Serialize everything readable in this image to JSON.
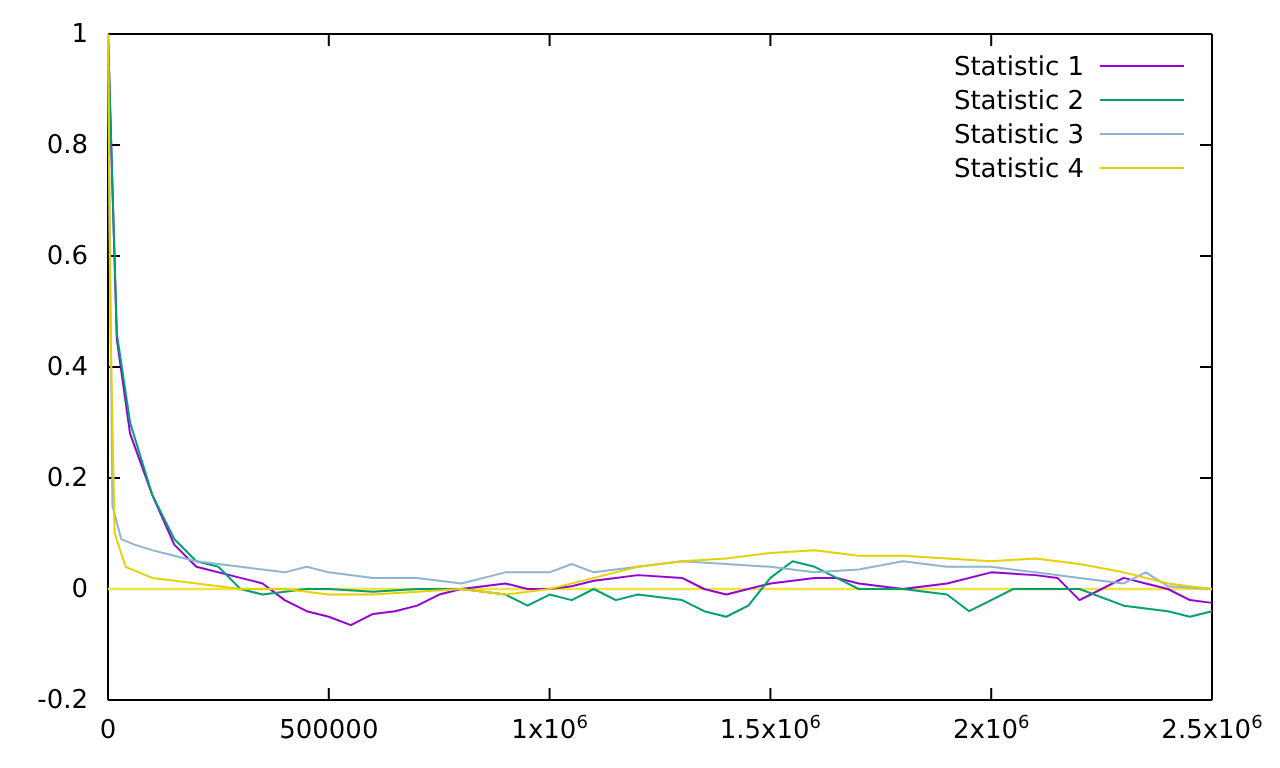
{
  "chart_data": {
    "type": "line",
    "xlim": [
      0,
      2500000
    ],
    "ylim": [
      -0.2,
      1
    ],
    "xticks": [
      0,
      500000,
      {
        "value": 1000000,
        "label": "1x10$^{6}$"
      },
      {
        "value": 1500000,
        "label": "1.5x10$^{6}$"
      },
      {
        "value": 2000000,
        "label": "2x10$^{6}$"
      },
      {
        "value": 2500000,
        "label": "2.5x10$^{6}$"
      }
    ],
    "yticks": [
      -0.2,
      0,
      0.2,
      0.4,
      0.6,
      0.8,
      1
    ],
    "grid": false,
    "legend": "top right",
    "line_style": "solid",
    "marker": "none",
    "ref_lines": [
      {
        "axis": "y",
        "value": 0,
        "color": "#f0e442"
      }
    ],
    "series": [
      {
        "name": "Statistic 1",
        "color": "#9400d3",
        "x": [
          0,
          20000,
          50000,
          100000,
          150000,
          200000,
          300000,
          350000,
          400000,
          450000,
          500000,
          550000,
          600000,
          650000,
          700000,
          750000,
          800000,
          850000,
          900000,
          950000,
          1000000,
          1050000,
          1100000,
          1150000,
          1200000,
          1300000,
          1350000,
          1400000,
          1450000,
          1500000,
          1600000,
          1650000,
          1700000,
          1750000,
          1800000,
          1900000,
          2000000,
          2100000,
          2150000,
          2200000,
          2250000,
          2300000,
          2350000,
          2400000,
          2450000,
          2500000
        ],
        "values": [
          1,
          0.45,
          0.28,
          0.17,
          0.08,
          0.04,
          0.02,
          0.01,
          -0.02,
          -0.04,
          -0.05,
          -0.065,
          -0.045,
          -0.04,
          -0.03,
          -0.01,
          0,
          0.005,
          0.01,
          0,
          0,
          0.005,
          0.015,
          0.02,
          0.025,
          0.02,
          0,
          -0.01,
          0,
          0.01,
          0.02,
          0.02,
          0.01,
          0.005,
          0,
          0.01,
          0.03,
          0.025,
          0.02,
          -0.02,
          0,
          0.02,
          0.01,
          0,
          -0.02,
          -0.025
        ]
      },
      {
        "name": "Statistic 2",
        "color": "#009e73",
        "x": [
          0,
          20000,
          50000,
          100000,
          150000,
          200000,
          250000,
          300000,
          350000,
          400000,
          450000,
          500000,
          600000,
          700000,
          800000,
          900000,
          950000,
          1000000,
          1050000,
          1100000,
          1150000,
          1200000,
          1300000,
          1350000,
          1400000,
          1450000,
          1500000,
          1550000,
          1600000,
          1650000,
          1700000,
          1800000,
          1900000,
          1950000,
          2000000,
          2050000,
          2100000,
          2200000,
          2300000,
          2400000,
          2450000,
          2500000
        ],
        "values": [
          1,
          0.46,
          0.3,
          0.17,
          0.09,
          0.05,
          0.04,
          0,
          -0.01,
          -0.005,
          0,
          0,
          -0.005,
          0,
          0,
          -0.01,
          -0.03,
          -0.01,
          -0.02,
          0,
          -0.02,
          -0.01,
          -0.02,
          -0.04,
          -0.05,
          -0.03,
          0.02,
          0.05,
          0.04,
          0.02,
          0,
          0,
          -0.01,
          -0.04,
          -0.02,
          0,
          0,
          0,
          -0.03,
          -0.04,
          -0.05,
          -0.04
        ]
      },
      {
        "name": "Statistic 3",
        "color": "#8fb4d0",
        "x": [
          0,
          10000,
          30000,
          60000,
          100000,
          150000,
          200000,
          300000,
          400000,
          450000,
          500000,
          600000,
          700000,
          800000,
          900000,
          1000000,
          1050000,
          1100000,
          1200000,
          1300000,
          1400000,
          1500000,
          1600000,
          1700000,
          1800000,
          1900000,
          2000000,
          2100000,
          2200000,
          2300000,
          2350000,
          2400000,
          2500000
        ],
        "values": [
          1,
          0.15,
          0.09,
          0.08,
          0.07,
          0.06,
          0.05,
          0.04,
          0.03,
          0.04,
          0.03,
          0.02,
          0.02,
          0.01,
          0.03,
          0.03,
          0.045,
          0.03,
          0.04,
          0.05,
          0.045,
          0.04,
          0.03,
          0.035,
          0.05,
          0.04,
          0.04,
          0.03,
          0.02,
          0.01,
          0.03,
          0.005,
          0
        ]
      },
      {
        "name": "Statistic 4",
        "color": "#e6d000",
        "x": [
          0,
          5000,
          15000,
          40000,
          100000,
          200000,
          300000,
          400000,
          500000,
          600000,
          700000,
          800000,
          900000,
          1000000,
          1100000,
          1200000,
          1300000,
          1400000,
          1500000,
          1600000,
          1700000,
          1800000,
          1900000,
          2000000,
          2100000,
          2200000,
          2300000,
          2400000,
          2500000
        ],
        "values": [
          1,
          0.5,
          0.1,
          0.04,
          0.02,
          0.01,
          0,
          0,
          -0.01,
          -0.01,
          -0.005,
          0,
          -0.01,
          0,
          0.02,
          0.04,
          0.05,
          0.055,
          0.065,
          0.07,
          0.06,
          0.06,
          0.055,
          0.05,
          0.055,
          0.045,
          0.03,
          0.01,
          0
        ]
      }
    ]
  }
}
